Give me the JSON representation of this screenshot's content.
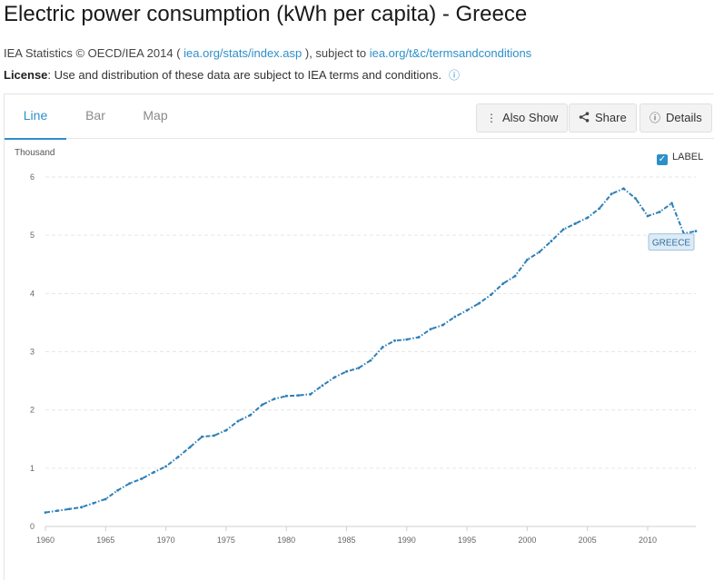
{
  "page": {
    "title": "Electric power consumption (kWh per capita) - Greece",
    "source_prefix": "IEA Statistics © OECD/IEA 2014 (",
    "source_link": "iea.org/stats/index.asp",
    "source_mid": "), subject to",
    "terms_link": "iea.org/t&c/termsandconditions",
    "license_label": "License",
    "license_text": ": Use and distribution of these data are subject to IEA terms and conditions."
  },
  "tabs": [
    {
      "label": "Line",
      "active": true
    },
    {
      "label": "Bar",
      "active": false
    },
    {
      "label": "Map",
      "active": false
    }
  ],
  "toolbar": {
    "also_show": "Also Show",
    "share": "Share",
    "details": "Details"
  },
  "label_toggle": {
    "label": "LABEL",
    "checked": true
  },
  "colors": {
    "accent": "#2d8fc9",
    "series": "#2e7fb8",
    "grid": "#e6e6e6"
  },
  "chart_data": {
    "type": "line",
    "title": "Electric power consumption (kWh per capita) - Greece",
    "ylabel": "Thousand",
    "xlabel": "",
    "xlim": [
      1960,
      2014
    ],
    "ylim": [
      0,
      6
    ],
    "yticks": [
      0,
      1,
      2,
      3,
      4,
      5,
      6
    ],
    "xticks": [
      1960,
      1965,
      1970,
      1975,
      1980,
      1985,
      1990,
      1995,
      2000,
      2005,
      2010
    ],
    "grid": true,
    "series": [
      {
        "name": "GREECE",
        "x": [
          1960,
          1961,
          1962,
          1963,
          1964,
          1965,
          1966,
          1967,
          1968,
          1969,
          1970,
          1971,
          1972,
          1973,
          1974,
          1975,
          1976,
          1977,
          1978,
          1979,
          1980,
          1981,
          1982,
          1983,
          1984,
          1985,
          1986,
          1987,
          1988,
          1989,
          1990,
          1991,
          1992,
          1993,
          1994,
          1995,
          1996,
          1997,
          1998,
          1999,
          2000,
          2001,
          2002,
          2003,
          2004,
          2005,
          2006,
          2007,
          2008,
          2009,
          2010,
          2011,
          2012,
          2013,
          2014
        ],
        "values": [
          0.24,
          0.27,
          0.3,
          0.33,
          0.4,
          0.47,
          0.62,
          0.74,
          0.82,
          0.93,
          1.03,
          1.19,
          1.36,
          1.54,
          1.56,
          1.65,
          1.81,
          1.91,
          2.09,
          2.19,
          2.24,
          2.25,
          2.27,
          2.42,
          2.56,
          2.66,
          2.72,
          2.85,
          3.08,
          3.19,
          3.21,
          3.25,
          3.39,
          3.46,
          3.6,
          3.71,
          3.83,
          3.98,
          4.17,
          4.3,
          4.58,
          4.71,
          4.9,
          5.1,
          5.2,
          5.3,
          5.46,
          5.71,
          5.8,
          5.63,
          5.33,
          5.4,
          5.55,
          5.03,
          5.07
        ]
      }
    ]
  }
}
